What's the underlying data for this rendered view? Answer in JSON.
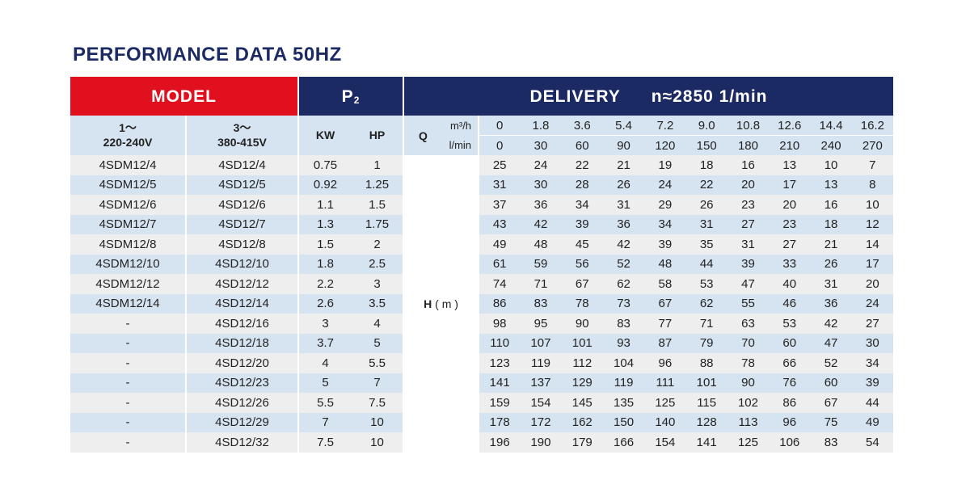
{
  "title": "PERFORMANCE DATA 50HZ",
  "headers": {
    "model": "MODEL",
    "p2": "P",
    "p2_sub": "2",
    "delivery": "DELIVERY",
    "speed": "n≈2850 1/min",
    "col1_line1": "1～",
    "col1_line2": "220-240V",
    "col2_line1": "3～",
    "col2_line2": "380-415V",
    "kw": "KW",
    "hp": "HP",
    "q": "Q",
    "unit_m3h": "m³/h",
    "unit_lmin": "l/min",
    "h_label": "H",
    "h_unit": "( m )"
  },
  "q_m3h": [
    "0",
    "1.8",
    "3.6",
    "5.4",
    "7.2",
    "9.0",
    "10.8",
    "12.6",
    "14.4",
    "16.2"
  ],
  "q_lmin": [
    "0",
    "30",
    "60",
    "90",
    "120",
    "150",
    "180",
    "210",
    "240",
    "270"
  ],
  "rows": [
    {
      "m1": "4SDM12/4",
      "m3": "4SD12/4",
      "kw": "0.75",
      "hp": "1",
      "h": [
        "25",
        "24",
        "22",
        "21",
        "19",
        "18",
        "16",
        "13",
        "10",
        "7"
      ]
    },
    {
      "m1": "4SDM12/5",
      "m3": "4SD12/5",
      "kw": "0.92",
      "hp": "1.25",
      "h": [
        "31",
        "30",
        "28",
        "26",
        "24",
        "22",
        "20",
        "17",
        "13",
        "8"
      ]
    },
    {
      "m1": "4SDM12/6",
      "m3": "4SD12/6",
      "kw": "1.1",
      "hp": "1.5",
      "h": [
        "37",
        "36",
        "34",
        "31",
        "29",
        "26",
        "23",
        "20",
        "16",
        "10"
      ]
    },
    {
      "m1": "4SDM12/7",
      "m3": "4SD12/7",
      "kw": "1.3",
      "hp": "1.75",
      "h": [
        "43",
        "42",
        "39",
        "36",
        "34",
        "31",
        "27",
        "23",
        "18",
        "12"
      ]
    },
    {
      "m1": "4SDM12/8",
      "m3": "4SD12/8",
      "kw": "1.5",
      "hp": "2",
      "h": [
        "49",
        "48",
        "45",
        "42",
        "39",
        "35",
        "31",
        "27",
        "21",
        "14"
      ]
    },
    {
      "m1": "4SDM12/10",
      "m3": "4SD12/10",
      "kw": "1.8",
      "hp": "2.5",
      "h": [
        "61",
        "59",
        "56",
        "52",
        "48",
        "44",
        "39",
        "33",
        "26",
        "17"
      ]
    },
    {
      "m1": "4SDM12/12",
      "m3": "4SD12/12",
      "kw": "2.2",
      "hp": "3",
      "h": [
        "74",
        "71",
        "67",
        "62",
        "58",
        "53",
        "47",
        "40",
        "31",
        "20"
      ]
    },
    {
      "m1": "4SDM12/14",
      "m3": "4SD12/14",
      "kw": "2.6",
      "hp": "3.5",
      "h": [
        "86",
        "83",
        "78",
        "73",
        "67",
        "62",
        "55",
        "46",
        "36",
        "24"
      ]
    },
    {
      "m1": "-",
      "m3": "4SD12/16",
      "kw": "3",
      "hp": "4",
      "h": [
        "98",
        "95",
        "90",
        "83",
        "77",
        "71",
        "63",
        "53",
        "42",
        "27"
      ]
    },
    {
      "m1": "-",
      "m3": "4SD12/18",
      "kw": "3.7",
      "hp": "5",
      "h": [
        "110",
        "107",
        "101",
        "93",
        "87",
        "79",
        "70",
        "60",
        "47",
        "30"
      ]
    },
    {
      "m1": "-",
      "m3": "4SD12/20",
      "kw": "4",
      "hp": "5.5",
      "h": [
        "123",
        "119",
        "112",
        "104",
        "96",
        "88",
        "78",
        "66",
        "52",
        "34"
      ]
    },
    {
      "m1": "-",
      "m3": "4SD12/23",
      "kw": "5",
      "hp": "7",
      "h": [
        "141",
        "137",
        "129",
        "119",
        "111",
        "101",
        "90",
        "76",
        "60",
        "39"
      ]
    },
    {
      "m1": "-",
      "m3": "4SD12/26",
      "kw": "5.5",
      "hp": "7.5",
      "h": [
        "159",
        "154",
        "145",
        "135",
        "125",
        "115",
        "102",
        "86",
        "67",
        "44"
      ]
    },
    {
      "m1": "-",
      "m3": "4SD12/29",
      "kw": "7",
      "hp": "10",
      "h": [
        "178",
        "172",
        "162",
        "150",
        "140",
        "128",
        "113",
        "96",
        "75",
        "49"
      ]
    },
    {
      "m1": "-",
      "m3": "4SD12/32",
      "kw": "7.5",
      "hp": "10",
      "h": [
        "196",
        "190",
        "179",
        "166",
        "154",
        "141",
        "125",
        "106",
        "83",
        "54"
      ]
    }
  ],
  "colors": {
    "red": "#e0101e",
    "navy": "#1c2a64",
    "light_blue": "#d6e4f1",
    "light_grey": "#eeeeee"
  }
}
